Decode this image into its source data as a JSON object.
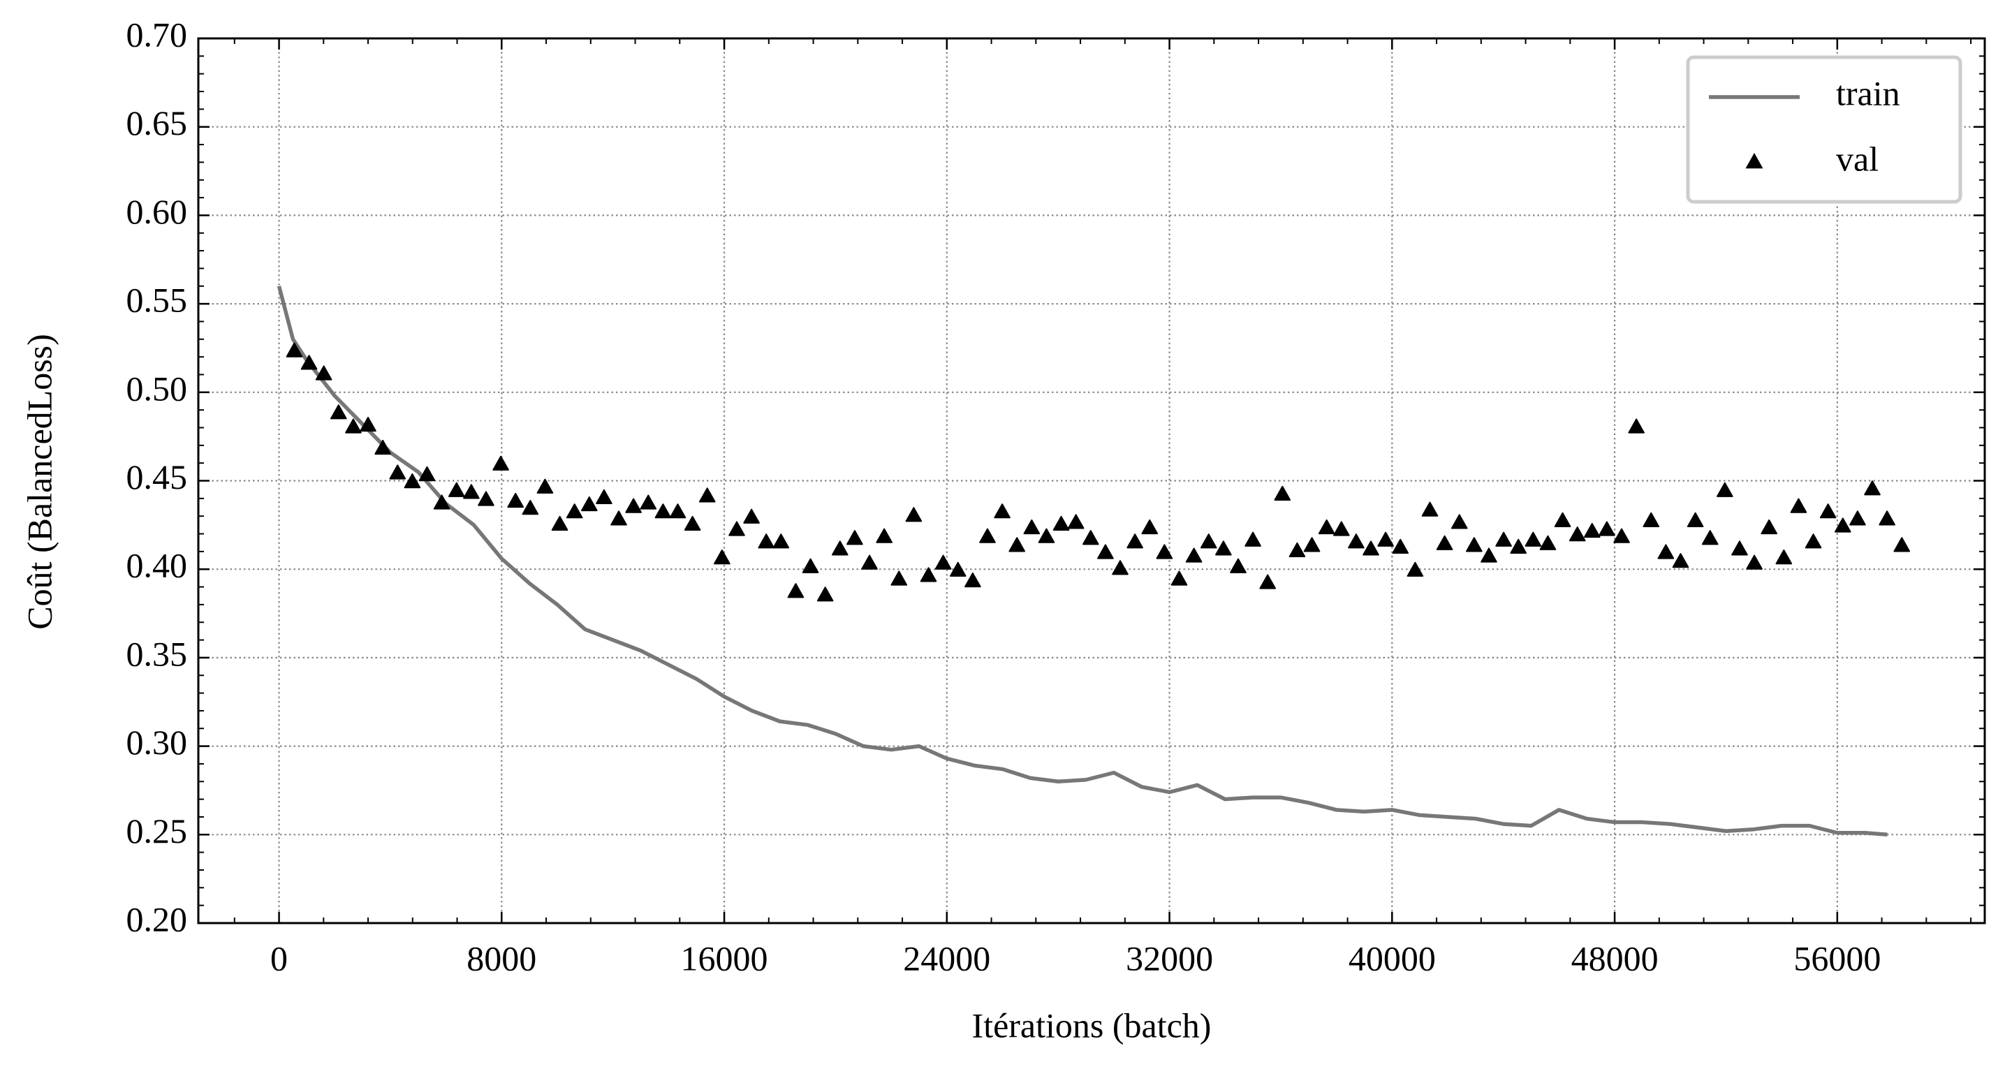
{
  "chart_data": {
    "type": "line",
    "x_label": "Itérations (batch)",
    "y_label": "Coût (BalancedLoss)",
    "xlim": [
      -2900,
      61300
    ],
    "ylim": [
      0.2,
      0.7
    ],
    "xticks": [
      0,
      8000,
      16000,
      24000,
      32000,
      40000,
      48000,
      56000
    ],
    "yticks": [
      {
        "value": 0.2,
        "label": "0.20"
      },
      0.25,
      {
        "value": 0.3,
        "label": "0.30"
      },
      0.35,
      {
        "value": 0.4,
        "label": "0.40"
      },
      0.45,
      {
        "value": 0.5,
        "label": "0.50"
      },
      0.55,
      {
        "value": 0.6,
        "label": "0.60"
      },
      0.65,
      {
        "value": 0.7,
        "label": "0.70"
      }
    ],
    "grid": true,
    "legend": "upper right",
    "series": [
      {
        "name": "train",
        "type": "line",
        "color": "#777777",
        "x": [
          0,
          500,
          1000,
          1500,
          2000,
          3000,
          4000,
          5000,
          6000,
          7000,
          8000,
          9000,
          10000,
          11000,
          12000,
          13000,
          14000,
          15000,
          16000,
          17000,
          18000,
          19000,
          20000,
          21000,
          22000,
          23000,
          24000,
          25000,
          26000,
          27000,
          28000,
          29000,
          30000,
          31000,
          32000,
          33000,
          34000,
          35000,
          36000,
          37000,
          38000,
          39000,
          40000,
          41000,
          42000,
          43000,
          44000,
          45000,
          46000,
          47000,
          48000,
          49000,
          50000,
          51000,
          52000,
          53000,
          54000,
          55000,
          56000,
          57000,
          57800
        ],
        "values": [
          0.56,
          0.53,
          0.518,
          0.508,
          0.498,
          0.482,
          0.466,
          0.455,
          0.437,
          0.425,
          0.406,
          0.392,
          0.38,
          0.366,
          0.36,
          0.354,
          0.346,
          0.338,
          0.328,
          0.32,
          0.314,
          0.312,
          0.307,
          0.3,
          0.298,
          0.3,
          0.293,
          0.289,
          0.287,
          0.282,
          0.28,
          0.281,
          0.285,
          0.277,
          0.274,
          0.278,
          0.27,
          0.271,
          0.271,
          0.268,
          0.264,
          0.263,
          0.264,
          0.261,
          0.26,
          0.259,
          0.256,
          0.255,
          0.264,
          0.259,
          0.257,
          0.257,
          0.256,
          0.254,
          0.252,
          0.253,
          0.255,
          0.255,
          0.251,
          0.251,
          0.25
        ]
      },
      {
        "name": "val",
        "type": "scatter",
        "color": "#000000",
        "x": [
          550,
          1080,
          1610,
          2140,
          2670,
          3200,
          3730,
          4260,
          4790,
          5320,
          5850,
          6380,
          6910,
          7440,
          7970,
          8500,
          9030,
          9560,
          10090,
          10620,
          11150,
          11680,
          12210,
          12740,
          13270,
          13800,
          14330,
          14860,
          15390,
          15920,
          16450,
          16980,
          17510,
          18040,
          18570,
          19100,
          19630,
          20160,
          20690,
          21220,
          21750,
          22280,
          22810,
          23340,
          23870,
          24400,
          24930,
          25460,
          25990,
          26520,
          27050,
          27580,
          28110,
          28640,
          29170,
          29700,
          30230,
          30760,
          31290,
          31820,
          32350,
          32880,
          33410,
          33940,
          34470,
          35000,
          35530,
          36060,
          36590,
          37120,
          37650,
          38180,
          38710,
          39240,
          39770,
          40300,
          40830,
          41360,
          41890,
          42420,
          42950,
          43480,
          44010,
          44540,
          45070,
          45600,
          46130,
          46660,
          47190,
          47720,
          48250,
          48780,
          49310,
          49840,
          50370,
          50900,
          51430,
          51960,
          52490,
          53020,
          53550,
          54080,
          54610,
          55140,
          55670,
          56200,
          56730,
          57260,
          57790,
          58320
        ],
        "values": [
          0.523,
          0.516,
          0.51,
          0.488,
          0.48,
          0.481,
          0.468,
          0.454,
          0.449,
          0.453,
          0.437,
          0.444,
          0.443,
          0.439,
          0.459,
          0.438,
          0.434,
          0.446,
          0.425,
          0.432,
          0.436,
          0.44,
          0.428,
          0.435,
          0.437,
          0.432,
          0.432,
          0.425,
          0.441,
          0.406,
          0.422,
          0.429,
          0.415,
          0.415,
          0.387,
          0.401,
          0.385,
          0.411,
          0.417,
          0.403,
          0.418,
          0.394,
          0.43,
          0.396,
          0.403,
          0.399,
          0.393,
          0.418,
          0.432,
          0.413,
          0.423,
          0.418,
          0.425,
          0.426,
          0.417,
          0.409,
          0.4,
          0.415,
          0.423,
          0.409,
          0.394,
          0.407,
          0.415,
          0.411,
          0.401,
          0.416,
          0.392,
          0.442,
          0.41,
          0.413,
          0.423,
          0.422,
          0.415,
          0.411,
          0.416,
          0.412,
          0.399,
          0.433,
          0.414,
          0.426,
          0.413,
          0.407,
          0.416,
          0.412,
          0.416,
          0.414,
          0.427,
          0.419,
          0.421,
          0.422,
          0.418,
          0.48,
          0.427,
          0.409,
          0.404,
          0.427,
          0.417,
          0.444,
          0.411,
          0.403,
          0.423,
          0.406,
          0.435,
          0.415,
          0.432,
          0.424,
          0.428,
          0.445,
          0.428,
          0.413
        ]
      }
    ]
  }
}
